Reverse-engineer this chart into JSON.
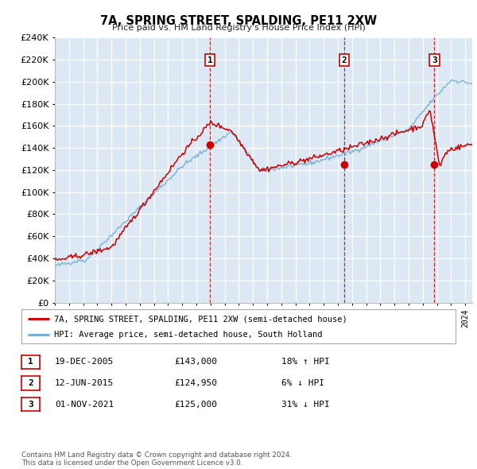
{
  "title": "7A, SPRING STREET, SPALDING, PE11 2XW",
  "subtitle": "Price paid vs. HM Land Registry's House Price Index (HPI)",
  "legend_line1": "7A, SPRING STREET, SPALDING, PE11 2XW (semi-detached house)",
  "legend_line2": "HPI: Average price, semi-detached house, South Holland",
  "red_color": "#cc0000",
  "blue_color": "#7ab0d4",
  "bg_color": "#dce9f5",
  "grid_color": "#ffffff",
  "sale_points": [
    {
      "date_num": 2005.97,
      "price": 143000,
      "label": "1"
    },
    {
      "date_num": 2015.44,
      "price": 124950,
      "label": "2"
    },
    {
      "date_num": 2021.83,
      "price": 125000,
      "label": "3"
    }
  ],
  "vline_dates": [
    2005.97,
    2015.44,
    2021.83
  ],
  "table_rows": [
    {
      "num": "1",
      "date": "19-DEC-2005",
      "price": "£143,000",
      "change": "18% ↑ HPI"
    },
    {
      "num": "2",
      "date": "12-JUN-2015",
      "price": "£124,950",
      "change": "6% ↓ HPI"
    },
    {
      "num": "3",
      "date": "01-NOV-2021",
      "price": "£125,000",
      "change": "31% ↓ HPI"
    }
  ],
  "footer": "Contains HM Land Registry data © Crown copyright and database right 2024.\nThis data is licensed under the Open Government Licence v3.0.",
  "ylim": [
    0,
    240000
  ],
  "yticks": [
    0,
    20000,
    40000,
    60000,
    80000,
    100000,
    120000,
    140000,
    160000,
    180000,
    200000,
    220000,
    240000
  ],
  "xmin": 1995,
  "xmax": 2024.5
}
